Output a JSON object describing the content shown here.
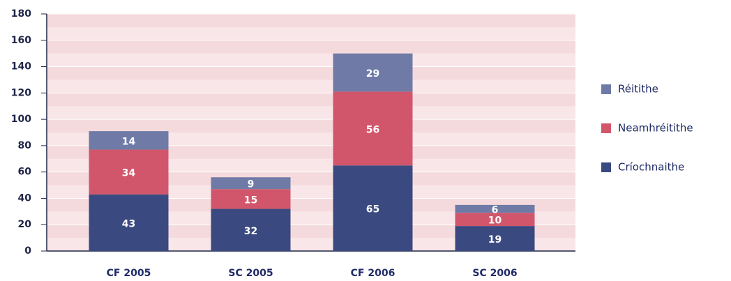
{
  "chart_data": {
    "type": "stacked_bar",
    "categories": [
      "CF 2005",
      "SC 2005",
      "CF 2006",
      "SC 2006"
    ],
    "series": [
      {
        "name": "Críochnaithe",
        "color": "#3a4a80",
        "values": [
          43,
          32,
          65,
          19
        ]
      },
      {
        "name": "Neamhréitithe",
        "color": "#d2566b",
        "values": [
          34,
          15,
          56,
          10
        ]
      },
      {
        "name": "Réitithe",
        "color": "#6f7ba6",
        "values": [
          14,
          9,
          29,
          6
        ]
      }
    ],
    "ylim": [
      0,
      180
    ],
    "yticks": [
      0,
      20,
      40,
      60,
      80,
      100,
      120,
      140,
      160,
      180
    ],
    "legend": "right"
  }
}
